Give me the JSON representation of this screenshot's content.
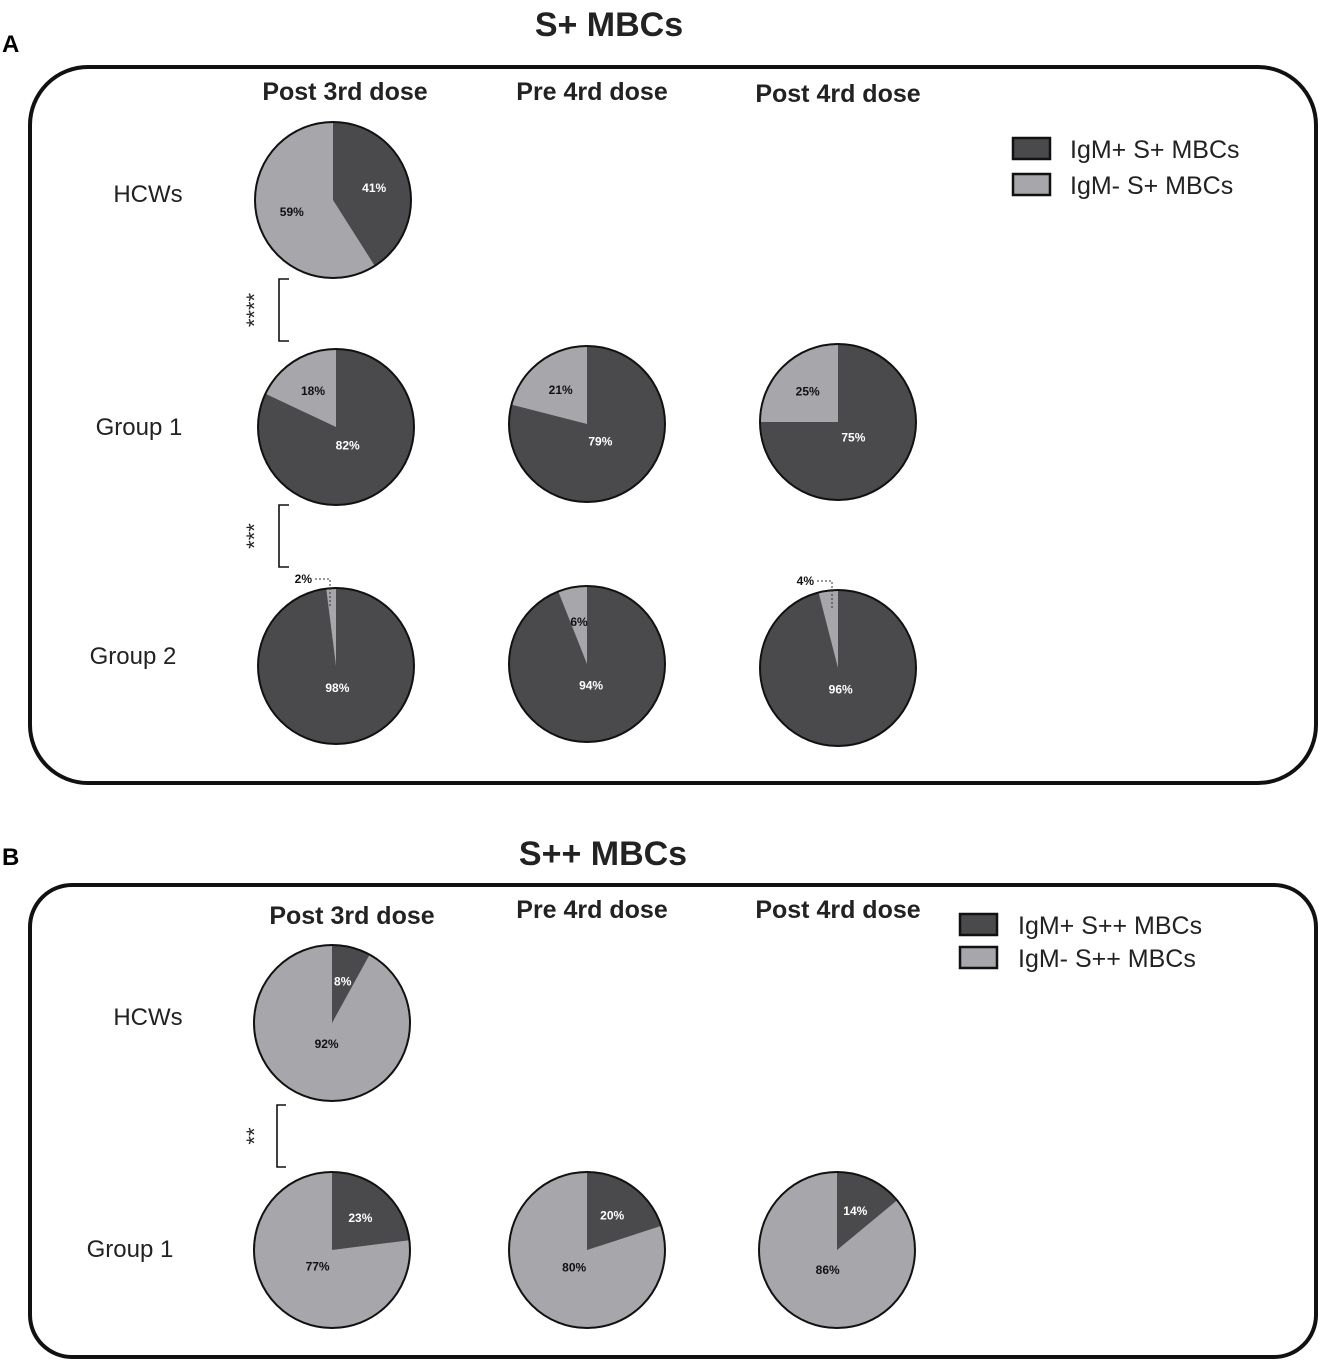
{
  "colors": {
    "igm_pos": "#4a4a4c",
    "igm_neg": "#a6a6ab",
    "outline": "#111111",
    "text": "#222222",
    "slice_label_dark": "#ffffff",
    "slice_label_light": "#111111"
  },
  "chart_data": [
    {
      "type": "pie",
      "panel_letter": "A",
      "title": "S+  MBCs",
      "columns": [
        "Post 3rd dose",
        "Pre 4rd dose",
        "Post 4rd dose"
      ],
      "rows": [
        "HCWs",
        "Group 1",
        "Group 2"
      ],
      "legend": [
        "IgM+ S+ MBCs",
        "IgM- S+ MBCs"
      ],
      "legend_position": "top-right",
      "significance": [
        {
          "between": [
            "HCWs",
            "Group 1"
          ],
          "label": "****"
        },
        {
          "between": [
            "Group 1",
            "Group 2"
          ],
          "label": "***"
        }
      ],
      "pies": [
        {
          "row": "HCWs",
          "column": "Post 3rd dose",
          "igm_pos": 41,
          "igm_neg": 59,
          "labels": {
            "igm_pos": "41%",
            "igm_neg": "59%"
          }
        },
        {
          "row": "Group 1",
          "column": "Post 3rd dose",
          "igm_pos": 82,
          "igm_neg": 18,
          "labels": {
            "igm_pos": "82%",
            "igm_neg": "18%"
          }
        },
        {
          "row": "Group 1",
          "column": "Pre 4rd dose",
          "igm_pos": 79,
          "igm_neg": 21,
          "labels": {
            "igm_pos": "79%",
            "igm_neg": "21%"
          }
        },
        {
          "row": "Group 1",
          "column": "Post 4rd dose",
          "igm_pos": 75,
          "igm_neg": 25,
          "labels": {
            "igm_pos": "75%",
            "igm_neg": "25%"
          }
        },
        {
          "row": "Group 2",
          "column": "Post 3rd dose",
          "igm_pos": 98,
          "igm_neg": 2,
          "labels": {
            "igm_pos": "98%",
            "igm_neg": "2%"
          },
          "outside_label": "igm_neg"
        },
        {
          "row": "Group 2",
          "column": "Pre 4rd dose",
          "igm_pos": 94,
          "igm_neg": 6,
          "labels": {
            "igm_pos": "94%",
            "igm_neg": "6%"
          }
        },
        {
          "row": "Group 2",
          "column": "Post 4rd dose",
          "igm_pos": 96,
          "igm_neg": 4,
          "labels": {
            "igm_pos": "96%",
            "igm_neg": "4%"
          },
          "outside_label": "igm_neg"
        }
      ]
    },
    {
      "type": "pie",
      "panel_letter": "B",
      "title": "S++  MBCs",
      "columns": [
        "Post 3rd dose",
        "Pre 4rd dose",
        "Post 4rd dose"
      ],
      "rows": [
        "HCWs",
        "Group 1"
      ],
      "legend": [
        "IgM+ S++ MBCs",
        "IgM- S++ MBCs"
      ],
      "legend_position": "top-right",
      "significance": [
        {
          "between": [
            "HCWs",
            "Group 1"
          ],
          "label": "**"
        }
      ],
      "pies": [
        {
          "row": "HCWs",
          "column": "Post 3rd dose",
          "igm_pos": 8,
          "igm_neg": 92,
          "labels": {
            "igm_pos": "8%",
            "igm_neg": "92%"
          }
        },
        {
          "row": "Group 1",
          "column": "Post 3rd dose",
          "igm_pos": 23,
          "igm_neg": 77,
          "labels": {
            "igm_pos": "23%",
            "igm_neg": "77%"
          }
        },
        {
          "row": "Group 1",
          "column": "Pre 4rd dose",
          "igm_pos": 20,
          "igm_neg": 80,
          "labels": {
            "igm_pos": "20%",
            "igm_neg": "80%"
          }
        },
        {
          "row": "Group 1",
          "column": "Post 4rd dose",
          "igm_pos": 14,
          "igm_neg": 86,
          "labels": {
            "igm_pos": "14%",
            "igm_neg": "86%"
          }
        }
      ]
    }
  ]
}
